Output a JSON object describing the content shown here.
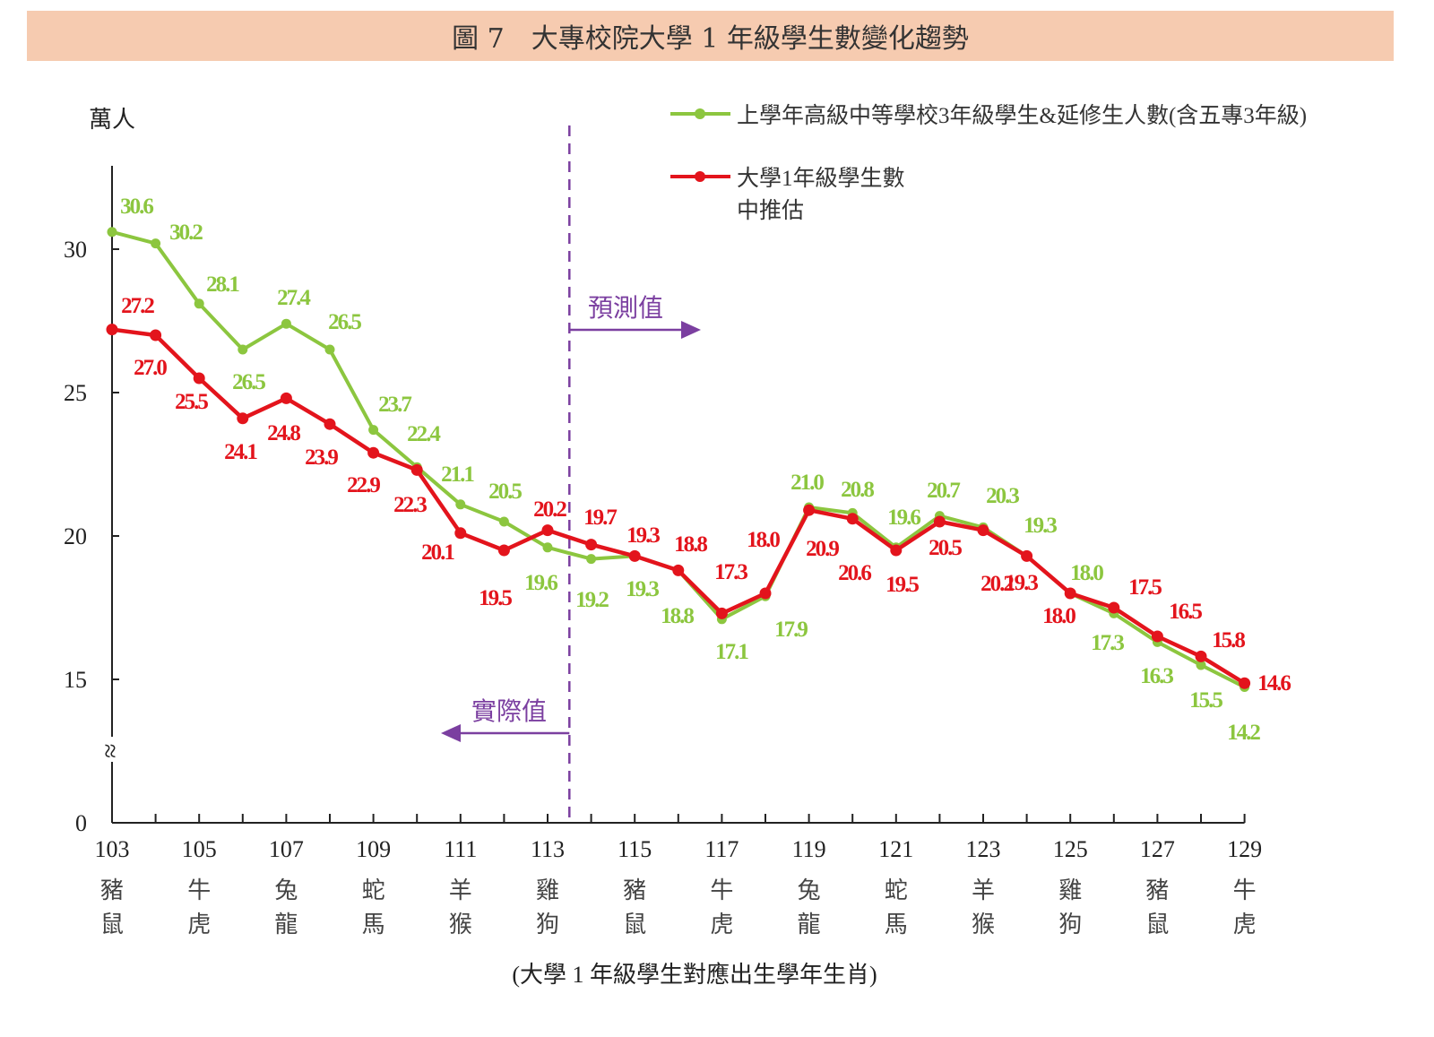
{
  "title": "圖 7　大專校院大學 1 年級學生數變化趨勢",
  "chart_data": {
    "type": "line",
    "title": "圖 7　大專校院大學 1 年級學生數變化趨勢",
    "ylabel": "萬人",
    "xlabel": "(大學 1 年級學生對應出生學年生肖)",
    "ylim": [
      0,
      32
    ],
    "y_axis_break": [
      0,
      15
    ],
    "yticks": [
      0,
      15,
      20,
      25,
      30
    ],
    "x": [
      103,
      104,
      105,
      106,
      107,
      108,
      109,
      110,
      111,
      112,
      113,
      114,
      115,
      116,
      117,
      118,
      119,
      120,
      121,
      122,
      123,
      124,
      125,
      126,
      127,
      128,
      129
    ],
    "xtick_labels": [
      {
        "year": "103",
        "zodiac": [
          "豬",
          "鼠"
        ]
      },
      {
        "year": "105",
        "zodiac": [
          "牛",
          "虎"
        ]
      },
      {
        "year": "107",
        "zodiac": [
          "兔",
          "龍"
        ]
      },
      {
        "year": "109",
        "zodiac": [
          "蛇",
          "馬"
        ]
      },
      {
        "year": "111",
        "zodiac": [
          "羊",
          "猴"
        ]
      },
      {
        "year": "113",
        "zodiac": [
          "雞",
          "狗"
        ]
      },
      {
        "year": "115",
        "zodiac": [
          "豬",
          "鼠"
        ]
      },
      {
        "year": "117",
        "zodiac": [
          "牛",
          "虎"
        ]
      },
      {
        "year": "119",
        "zodiac": [
          "兔",
          "龍"
        ]
      },
      {
        "year": "121",
        "zodiac": [
          "蛇",
          "馬"
        ]
      },
      {
        "year": "123",
        "zodiac": [
          "羊",
          "猴"
        ]
      },
      {
        "year": "125",
        "zodiac": [
          "雞",
          "狗"
        ]
      },
      {
        "year": "127",
        "zodiac": [
          "豬",
          "鼠"
        ]
      },
      {
        "year": "129",
        "zodiac": [
          "牛",
          "虎"
        ]
      }
    ],
    "series": [
      {
        "name": "上學年高級中等學校3年級學生&延修生人數(含五專3年級)",
        "color": "#8cc63f",
        "values": [
          30.6,
          30.2,
          28.1,
          26.5,
          27.4,
          26.5,
          23.7,
          22.4,
          21.1,
          20.5,
          19.6,
          19.2,
          19.3,
          18.8,
          17.1,
          17.9,
          21.0,
          20.8,
          19.6,
          20.7,
          20.3,
          19.3,
          18.0,
          17.3,
          16.3,
          15.5,
          14.2
        ]
      },
      {
        "name": "大學1年級學生數",
        "name_line2": "中推估",
        "color": "#e3141c",
        "values": [
          27.2,
          27.0,
          25.5,
          24.1,
          24.8,
          23.9,
          22.9,
          22.3,
          20.1,
          19.5,
          20.2,
          19.7,
          19.3,
          18.8,
          17.3,
          18.0,
          20.9,
          20.6,
          19.5,
          20.5,
          20.2,
          19.3,
          18.0,
          17.5,
          16.5,
          15.8,
          14.6
        ]
      }
    ],
    "divider_at": 113.5,
    "annotations": {
      "forecast": "預測值",
      "actual": "實際值"
    },
    "divider_color": "#7b3fa0",
    "legend": "top-right",
    "grid": false
  }
}
